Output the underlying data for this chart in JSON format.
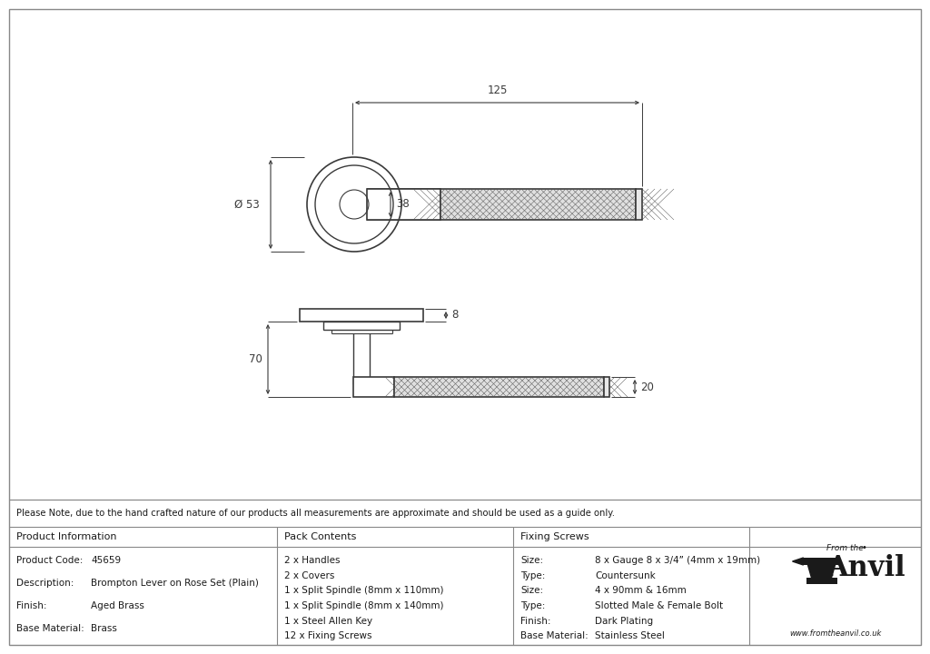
{
  "bg_color": "#ffffff",
  "line_color": "#3a3a3a",
  "dim_color": "#3a3a3a",
  "hatch_color": "#555555",
  "note": "Please Note, due to the hand crafted nature of our products all measurements are approximate and should be used as a guide only.",
  "pack_contents": [
    "2 x Handles",
    "2 x Covers",
    "1 x Split Spindle (8mm x 110mm)",
    "1 x Split Spindle (8mm x 140mm)",
    "1 x Steel Allen Key",
    "12 x Fixing Screws"
  ],
  "fixing_screws_lines": [
    [
      "Size:",
      "8 x Gauge 8 x 3/4” (4mm x 19mm)"
    ],
    [
      "Type:",
      "Countersunk"
    ],
    [
      "Size:",
      "4 x 90mm & 16mm"
    ],
    [
      "Type:",
      "Slotted Male & Female Bolt"
    ],
    [
      "Finish:",
      "Dark Plating"
    ],
    [
      "Base Material:",
      "Stainless Steel"
    ]
  ],
  "product_lines": [
    [
      "Product Code:",
      "45659"
    ],
    [
      "Description:",
      "Brompton Lever on Rose Set (Plain)"
    ],
    [
      "Finish:",
      "Aged Brass"
    ],
    [
      "Base Material:",
      "Brass"
    ]
  ],
  "dim_125": "125",
  "dim_53": "Ø 53",
  "dim_38": "38",
  "dim_8": "8",
  "dim_70": "70",
  "dim_20": "20",
  "url": "www.fromtheanvil.co.uk"
}
